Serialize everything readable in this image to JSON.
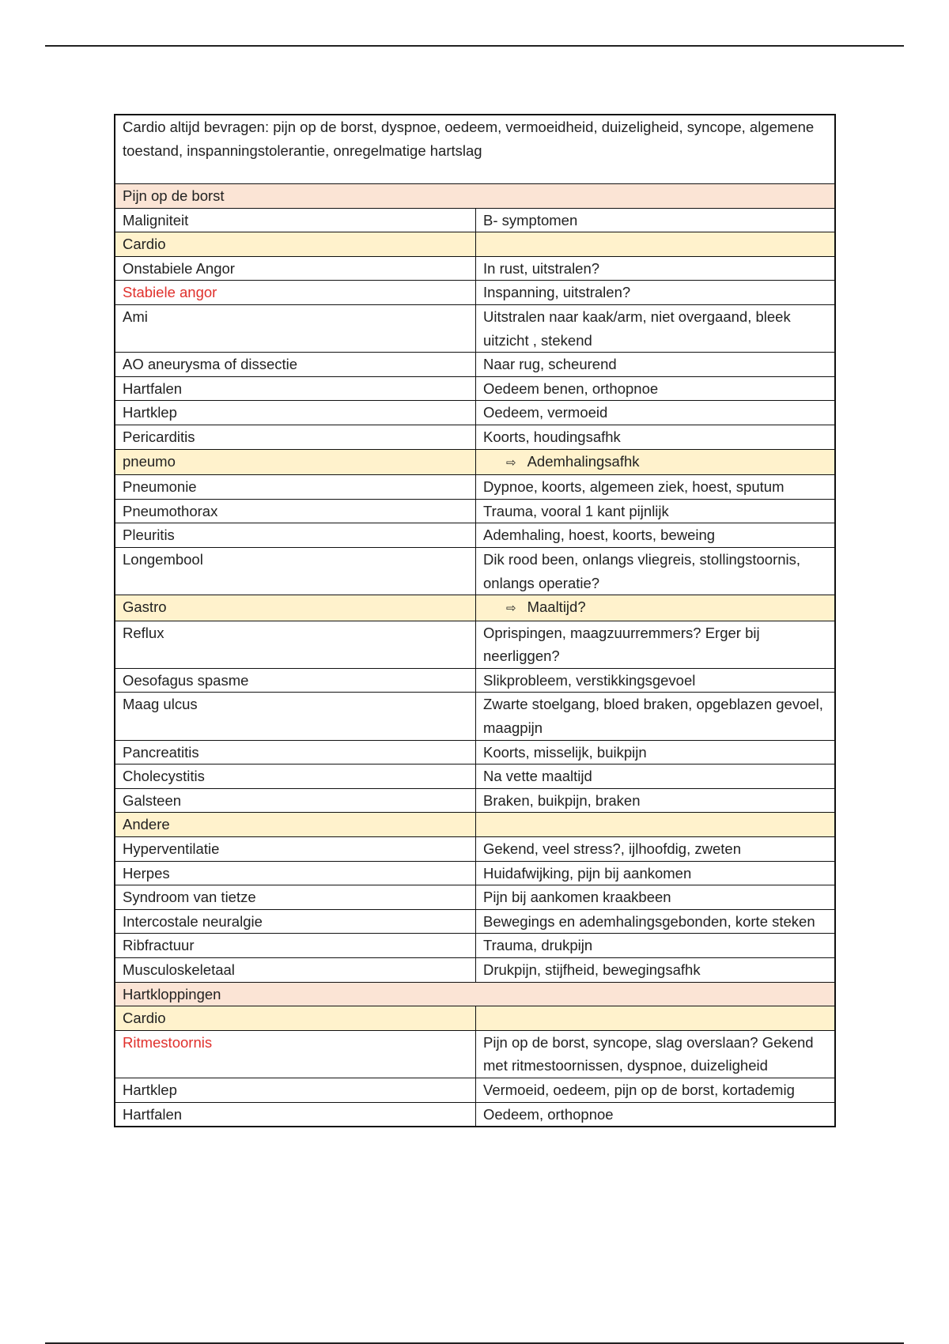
{
  "intro": "Cardio altijd bevragen: pijn op de borst, dyspnoe, oedeem, vermoeidheid, duizeligheid, syncope, algemene toestand, inspanningstolerantie, onregelmatige hartslag",
  "colors": {
    "section": "#fbe4d5",
    "category": "#fff2cc",
    "highlight": "#e0302c"
  },
  "rows": [
    {
      "type": "section",
      "label": "Pijn op de borst"
    },
    {
      "type": "row",
      "left": "Maligniteit",
      "right": "B- symptomen"
    },
    {
      "type": "category",
      "left": "Cardio",
      "right": ""
    },
    {
      "type": "row",
      "left": "Onstabiele Angor",
      "right": "In rust, uitstralen?"
    },
    {
      "type": "row",
      "left": "Stabiele angor",
      "right": "Inspanning, uitstralen?",
      "red": true
    },
    {
      "type": "row",
      "left": "Ami",
      "right": "Uitstralen naar kaak/arm, niet overgaand, bleek uitzicht , stekend"
    },
    {
      "type": "row",
      "left": "AO aneurysma of dissectie",
      "right": "Naar rug, scheurend"
    },
    {
      "type": "row",
      "left": "Hartfalen",
      "right": "Oedeem benen, orthopnoe"
    },
    {
      "type": "row",
      "left": "Hartklep",
      "right": "Oedeem, vermoeid"
    },
    {
      "type": "row",
      "left": "Pericarditis",
      "right": "Koorts, houdingsafhk"
    },
    {
      "type": "category",
      "left": "pneumo",
      "right": "Ademhalingsafhk",
      "arrow": true
    },
    {
      "type": "row",
      "left": "Pneumonie",
      "right": "Dypnoe, koorts, algemeen ziek, hoest, sputum"
    },
    {
      "type": "row",
      "left": "Pneumothorax",
      "right": "Trauma, vooral 1 kant pijnlijk"
    },
    {
      "type": "row",
      "left": "Pleuritis",
      "right": "Ademhaling, hoest, koorts, beweing"
    },
    {
      "type": "row",
      "left": "Longembool",
      "right": "Dik rood been, onlangs vliegreis, stollingstoornis, onlangs operatie?"
    },
    {
      "type": "category",
      "left": "Gastro",
      "right": "Maaltijd?",
      "arrow": true
    },
    {
      "type": "row",
      "left": "Reflux",
      "right": "Oprispingen, maagzuurremmers? Erger bij neerliggen?"
    },
    {
      "type": "row",
      "left": "Oesofagus spasme",
      "right": "Slikprobleem, verstikkingsgevoel"
    },
    {
      "type": "row",
      "left": "Maag ulcus",
      "right": "Zwarte stoelgang, bloed braken, opgeblazen gevoel, maagpijn"
    },
    {
      "type": "row",
      "left": "Pancreatitis",
      "right": "Koorts, misselijk, buikpijn"
    },
    {
      "type": "row",
      "left": "Cholecystitis",
      "right": "Na vette maaltijd"
    },
    {
      "type": "row",
      "left": "Galsteen",
      "right": "Braken, buikpijn, braken"
    },
    {
      "type": "category",
      "left": "Andere",
      "right": ""
    },
    {
      "type": "row",
      "left": "Hyperventilatie",
      "right": "Gekend, veel stress?, ijlhoofdig, zweten"
    },
    {
      "type": "row",
      "left": "Herpes",
      "right": "Huidafwijking, pijn bij aankomen"
    },
    {
      "type": "row",
      "left": "Syndroom van tietze",
      "right": "Pijn bij aankomen kraakbeen"
    },
    {
      "type": "row",
      "left": "Intercostale neuralgie",
      "right": "Bewegings en ademhalingsgebonden, korte steken"
    },
    {
      "type": "row",
      "left": "Ribfractuur",
      "right": "Trauma, drukpijn"
    },
    {
      "type": "row",
      "left": "Musculoskeletaal",
      "right": "Drukpijn, stijfheid, bewegingsafhk"
    },
    {
      "type": "section",
      "label": "Hartkloppingen"
    },
    {
      "type": "category",
      "left": "Cardio",
      "right": ""
    },
    {
      "type": "row",
      "left": "Ritmestoornis",
      "right": "Pijn op de borst, syncope, slag overslaan? Gekend met ritmestoornissen, dyspnoe, duizeligheid",
      "red": true
    },
    {
      "type": "row",
      "left": "Hartklep",
      "right": "Vermoeid, oedeem, pijn op de borst, kortademig"
    },
    {
      "type": "row",
      "left": "Hartfalen",
      "right": "Oedeem, orthopnoe"
    }
  ]
}
